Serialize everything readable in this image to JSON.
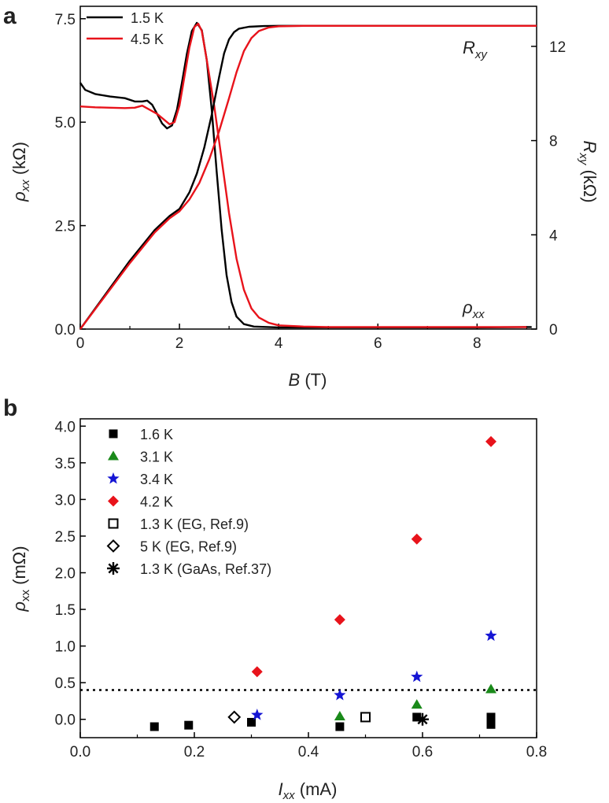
{
  "chart_data": [
    {
      "panel_label": "a",
      "type": "line",
      "xlabel": "B (T)",
      "xlabel_var": "B",
      "xlabel_unit": " (T)",
      "ylabel_left": "ρxx (kΩ)",
      "ylabel_left_var": "ρ",
      "ylabel_left_sub": "xx",
      "ylabel_left_unit": " (kΩ)",
      "ylabel_right": "Rxy (kΩ)",
      "ylabel_right_var": "R",
      "ylabel_right_sub": "xy",
      "ylabel_right_unit": " (kΩ)",
      "xlim": [
        0,
        9.2
      ],
      "ylim_left": [
        0,
        7.8
      ],
      "ylim_right": [
        0,
        13.7
      ],
      "xticks": [
        0,
        2,
        4,
        6,
        8
      ],
      "xtick_labels": [
        "0",
        "2",
        "4",
        "6",
        "8"
      ],
      "yticks_left": [
        0,
        2.5,
        5,
        7.5
      ],
      "ytick_labels_left": [
        "0.0",
        "2.5",
        "5.0",
        "7.5"
      ],
      "yticks_right": [
        0,
        4,
        8,
        12
      ],
      "ytick_labels_right": [
        "0",
        "4",
        "8",
        "12"
      ],
      "annotations": {
        "rxy": {
          "var": "R",
          "sub": "xy"
        },
        "rhoxx": {
          "var": "ρ",
          "sub": "xx"
        }
      },
      "series": [
        {
          "name": "1.5 K",
          "color": "#000000",
          "axis": "left",
          "points": [
            [
              0,
              5.95
            ],
            [
              0.1,
              5.78
            ],
            [
              0.3,
              5.68
            ],
            [
              0.6,
              5.62
            ],
            [
              0.9,
              5.58
            ],
            [
              1.1,
              5.5
            ],
            [
              1.25,
              5.5
            ],
            [
              1.35,
              5.52
            ],
            [
              1.45,
              5.42
            ],
            [
              1.55,
              5.2
            ],
            [
              1.65,
              4.97
            ],
            [
              1.75,
              4.85
            ],
            [
              1.85,
              4.92
            ],
            [
              1.95,
              5.3
            ],
            [
              2.05,
              5.95
            ],
            [
              2.15,
              6.65
            ],
            [
              2.25,
              7.2
            ],
            [
              2.35,
              7.4
            ],
            [
              2.45,
              7.22
            ],
            [
              2.55,
              6.5
            ],
            [
              2.65,
              5.3
            ],
            [
              2.75,
              3.8
            ],
            [
              2.85,
              2.4
            ],
            [
              2.95,
              1.3
            ],
            [
              3.05,
              0.65
            ],
            [
              3.15,
              0.3
            ],
            [
              3.3,
              0.12
            ],
            [
              3.5,
              0.06
            ],
            [
              4,
              0.04
            ],
            [
              5,
              0.04
            ],
            [
              6,
              0.04
            ],
            [
              7,
              0.04
            ],
            [
              8,
              0.04
            ],
            [
              9,
              0.05
            ],
            [
              9.1,
              0.05
            ]
          ]
        },
        {
          "name": "4.5 K",
          "color": "#e8131b",
          "axis": "left",
          "points": [
            [
              0,
              5.38
            ],
            [
              0.3,
              5.36
            ],
            [
              0.6,
              5.35
            ],
            [
              0.9,
              5.34
            ],
            [
              1.1,
              5.35
            ],
            [
              1.25,
              5.4
            ],
            [
              1.4,
              5.3
            ],
            [
              1.55,
              5.2
            ],
            [
              1.7,
              5.05
            ],
            [
              1.8,
              4.95
            ],
            [
              1.9,
              5.0
            ],
            [
              2.0,
              5.4
            ],
            [
              2.1,
              6.1
            ],
            [
              2.2,
              6.8
            ],
            [
              2.3,
              7.3
            ],
            [
              2.38,
              7.38
            ],
            [
              2.45,
              7.2
            ],
            [
              2.55,
              6.5
            ],
            [
              2.7,
              5.4
            ],
            [
              2.85,
              4.1
            ],
            [
              3.0,
              2.8
            ],
            [
              3.15,
              1.7
            ],
            [
              3.3,
              0.95
            ],
            [
              3.45,
              0.5
            ],
            [
              3.6,
              0.28
            ],
            [
              3.8,
              0.15
            ],
            [
              4.0,
              0.09
            ],
            [
              4.5,
              0.06
            ],
            [
              5,
              0.05
            ],
            [
              6,
              0.05
            ],
            [
              7,
              0.05
            ],
            [
              8,
              0.05
            ],
            [
              9.0,
              0.05
            ]
          ]
        },
        {
          "name": "Rxy 1.5 K",
          "color": "#000000",
          "axis": "right",
          "points": [
            [
              0,
              0
            ],
            [
              0.5,
              1.45
            ],
            [
              1.0,
              2.9
            ],
            [
              1.5,
              4.2
            ],
            [
              1.8,
              4.8
            ],
            [
              2.0,
              5.1
            ],
            [
              2.2,
              5.8
            ],
            [
              2.35,
              6.6
            ],
            [
              2.5,
              7.7
            ],
            [
              2.65,
              9.1
            ],
            [
              2.8,
              10.7
            ],
            [
              2.9,
              11.7
            ],
            [
              3.0,
              12.3
            ],
            [
              3.1,
              12.6
            ],
            [
              3.2,
              12.75
            ],
            [
              3.4,
              12.83
            ],
            [
              3.7,
              12.86
            ],
            [
              4,
              12.87
            ],
            [
              6,
              12.87
            ],
            [
              8,
              12.87
            ],
            [
              9.2,
              12.87
            ]
          ]
        },
        {
          "name": "Rxy 4.5 K",
          "color": "#e8131b",
          "axis": "right",
          "points": [
            [
              0,
              0
            ],
            [
              0.5,
              1.4
            ],
            [
              1.0,
              2.8
            ],
            [
              1.5,
              4.1
            ],
            [
              1.8,
              4.7
            ],
            [
              2.0,
              5.0
            ],
            [
              2.2,
              5.5
            ],
            [
              2.4,
              6.2
            ],
            [
              2.6,
              7.2
            ],
            [
              2.8,
              8.4
            ],
            [
              3.0,
              9.8
            ],
            [
              3.15,
              10.9
            ],
            [
              3.3,
              11.8
            ],
            [
              3.45,
              12.35
            ],
            [
              3.6,
              12.65
            ],
            [
              3.8,
              12.8
            ],
            [
              4.0,
              12.85
            ],
            [
              4.5,
              12.87
            ],
            [
              6,
              12.87
            ],
            [
              8,
              12.87
            ],
            [
              9.2,
              12.87
            ]
          ]
        }
      ],
      "legend": [
        "1.5 K",
        "4.5 K"
      ],
      "legend_position": "top-left"
    },
    {
      "panel_label": "b",
      "type": "scatter",
      "xlabel": "Ixx (mA)",
      "xlabel_var": "I",
      "xlabel_sub": "xx",
      "xlabel_unit": " (mA)",
      "ylabel": "ρxx (mΩ)",
      "ylabel_var": "ρ",
      "ylabel_sub": "xx",
      "ylabel_unit": " (mΩ)",
      "xlim": [
        0,
        0.8
      ],
      "ylim": [
        -0.25,
        4.1
      ],
      "xticks": [
        0,
        0.2,
        0.4,
        0.6,
        0.8
      ],
      "xtick_labels": [
        "0.0",
        "0.2",
        "0.4",
        "0.6",
        "0.8"
      ],
      "yticks": [
        0,
        0.5,
        1,
        1.5,
        2,
        2.5,
        3,
        3.5,
        4
      ],
      "ytick_labels": [
        "0.0",
        "0.5",
        "1.0",
        "1.5",
        "2.0",
        "2.5",
        "3.0",
        "3.5",
        "4.0"
      ],
      "reference_line": {
        "y": 0.4,
        "style": "dotted"
      },
      "series": [
        {
          "name": "1.6 K",
          "marker": "square",
          "color": "#000000",
          "points": [
            [
              0.13,
              -0.1
            ],
            [
              0.19,
              -0.08
            ],
            [
              0.3,
              -0.04
            ],
            [
              0.455,
              -0.1
            ],
            [
              0.59,
              0.03
            ],
            [
              0.72,
              0.03
            ],
            [
              0.72,
              -0.07
            ]
          ]
        },
        {
          "name": "3.1 K",
          "marker": "triangle",
          "color": "#1a8a1a",
          "points": [
            [
              0.455,
              0.04
            ],
            [
              0.59,
              0.2
            ],
            [
              0.72,
              0.41
            ]
          ]
        },
        {
          "name": "3.4 K",
          "marker": "star",
          "color": "#1515d4",
          "points": [
            [
              0.31,
              0.06
            ],
            [
              0.455,
              0.33
            ],
            [
              0.59,
              0.58
            ],
            [
              0.72,
              1.14
            ]
          ]
        },
        {
          "name": "4.2 K",
          "marker": "diamond",
          "color": "#e8131b",
          "points": [
            [
              0.31,
              0.65
            ],
            [
              0.455,
              1.36
            ],
            [
              0.59,
              2.46
            ],
            [
              0.72,
              3.79
            ]
          ]
        },
        {
          "name": "1.3 K (EG, Ref.9)",
          "marker": "open-square",
          "color": "#000000",
          "points": [
            [
              0.5,
              0.03
            ]
          ]
        },
        {
          "name": "5 K (EG, Ref.9)",
          "marker": "open-diamond",
          "color": "#000000",
          "points": [
            [
              0.27,
              0.03
            ]
          ]
        },
        {
          "name": "1.3 K (GaAs, Ref.37)",
          "marker": "asterisk",
          "color": "#000000",
          "points": [
            [
              0.6,
              0.0
            ]
          ]
        }
      ],
      "legend_position": "top-left"
    }
  ]
}
